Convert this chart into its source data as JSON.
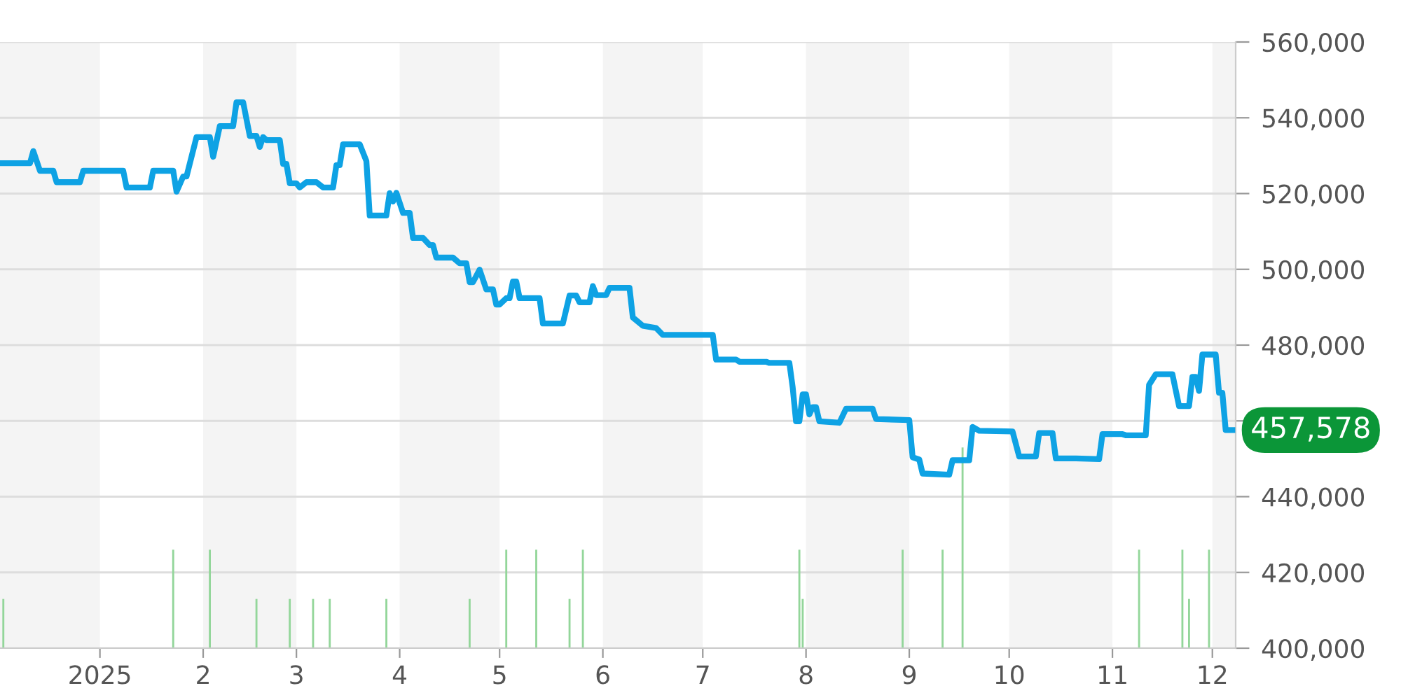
{
  "chart_data": {
    "type": "line",
    "series": [
      {
        "color": "#0ea2e4",
        "x": [
          "2024-12-02",
          "2024-12-11",
          "2024-12-12",
          "2024-12-14",
          "2024-12-18",
          "2024-12-19",
          "2024-12-26",
          "2024-12-27",
          "2025-01-08",
          "2025-01-09",
          "2025-01-16",
          "2025-01-17",
          "2025-01-23",
          "2025-01-24",
          "2025-01-26",
          "2025-01-27",
          "2025-01-30",
          "2025-02-03",
          "2025-02-04",
          "2025-02-06",
          "2025-02-10",
          "2025-02-11",
          "2025-02-13",
          "2025-02-15",
          "2025-02-17",
          "2025-02-18",
          "2025-02-19",
          "2025-02-20",
          "2025-02-24",
          "2025-02-25",
          "2025-02-26",
          "2025-02-27",
          "2025-03-01",
          "2025-03-02",
          "2025-03-04",
          "2025-03-07",
          "2025-03-09",
          "2025-03-12",
          "2025-03-13",
          "2025-03-14",
          "2025-03-15",
          "2025-03-20",
          "2025-03-22",
          "2025-03-23",
          "2025-03-28",
          "2025-03-29",
          "2025-03-30",
          "2025-03-31",
          "2025-04-02",
          "2025-04-04",
          "2025-04-05",
          "2025-04-08",
          "2025-04-10",
          "2025-04-11",
          "2025-04-12",
          "2025-04-17",
          "2025-04-19",
          "2025-04-21",
          "2025-04-22",
          "2025-04-23",
          "2025-04-25",
          "2025-04-27",
          "2025-04-29",
          "2025-04-30",
          "2025-05-01",
          "2025-05-03",
          "2025-05-04",
          "2025-05-05",
          "2025-05-06",
          "2025-05-07",
          "2025-05-13",
          "2025-05-14",
          "2025-05-20",
          "2025-05-22",
          "2025-05-24",
          "2025-05-25",
          "2025-05-28",
          "2025-05-29",
          "2025-05-30",
          "2025-06-02",
          "2025-06-03",
          "2025-06-09",
          "2025-06-10",
          "2025-06-13",
          "2025-06-17",
          "2025-06-19",
          "2025-07-04",
          "2025-07-05",
          "2025-07-11",
          "2025-07-12",
          "2025-07-20",
          "2025-07-21",
          "2025-07-27",
          "2025-07-28",
          "2025-07-29",
          "2025-07-30",
          "2025-07-31",
          "2025-08-01",
          "2025-08-02",
          "2025-08-03",
          "2025-08-04",
          "2025-08-05",
          "2025-08-11",
          "2025-08-13",
          "2025-08-21",
          "2025-08-22",
          "2025-09-01",
          "2025-09-02",
          "2025-09-04",
          "2025-09-05",
          "2025-09-13",
          "2025-09-14",
          "2025-09-19",
          "2025-09-20",
          "2025-09-22",
          "2025-10-02",
          "2025-10-04",
          "2025-10-09",
          "2025-10-10",
          "2025-10-14",
          "2025-10-15",
          "2025-10-21",
          "2025-10-28",
          "2025-10-29",
          "2025-11-04",
          "2025-11-05",
          "2025-11-11",
          "2025-11-12",
          "2025-11-14",
          "2025-11-19",
          "2025-11-21",
          "2025-11-24",
          "2025-11-25",
          "2025-11-26",
          "2025-11-27",
          "2025-11-28",
          "2025-12-02",
          "2025-12-03",
          "2025-12-04",
          "2025-12-05",
          "2025-12-07"
        ],
        "values": [
          528000,
          528000,
          531200,
          526000,
          526000,
          523000,
          523000,
          526000,
          526000,
          521600,
          521600,
          526000,
          526000,
          520500,
          524500,
          524500,
          534900,
          534900,
          529700,
          537800,
          537800,
          544100,
          544100,
          535200,
          535200,
          532300,
          534900,
          534100,
          534100,
          527800,
          527800,
          522700,
          522700,
          521600,
          523000,
          523000,
          521600,
          521600,
          527500,
          527500,
          533000,
          533000,
          528600,
          514200,
          514200,
          520100,
          517900,
          520200,
          514900,
          514900,
          508300,
          508300,
          506400,
          506400,
          503100,
          503100,
          501600,
          501600,
          496600,
          496600,
          499900,
          494700,
          494700,
          490700,
          490700,
          492400,
          492400,
          496800,
          496800,
          492400,
          492400,
          485700,
          485700,
          493100,
          493100,
          491300,
          491300,
          495600,
          493200,
          493200,
          495100,
          495100,
          487300,
          485100,
          484500,
          482700,
          482700,
          476200,
          476200,
          475600,
          475600,
          475300,
          475300,
          468800,
          459900,
          459900,
          467000,
          467000,
          461700,
          463600,
          463600,
          459900,
          459500,
          463200,
          463200,
          460500,
          460200,
          450400,
          449800,
          446100,
          445800,
          449600,
          449600,
          458400,
          457400,
          457200,
          450600,
          450600,
          456800,
          456800,
          450100,
          450100,
          449900,
          456500,
          456500,
          456200,
          456200,
          469500,
          472300,
          472300,
          463900,
          463900,
          471600,
          471600,
          467900,
          477500,
          477500,
          467400,
          467400,
          457578,
          457578
        ]
      },
      {
        "type": "bar",
        "color": "#93d69a",
        "x": [
          "2024-12-03",
          "2025-01-23",
          "2025-02-03",
          "2025-02-17",
          "2025-02-27",
          "2025-03-06",
          "2025-03-11",
          "2025-03-28",
          "2025-04-22",
          "2025-05-03",
          "2025-05-12",
          "2025-05-22",
          "2025-05-26",
          "2025-07-30",
          "2025-07-31",
          "2025-08-30",
          "2025-09-11",
          "2025-09-17",
          "2025-11-09",
          "2025-11-22",
          "2025-11-24",
          "2025-11-30"
        ],
        "values": [
          413000,
          426000,
          426000,
          413000,
          413000,
          413000,
          413000,
          413000,
          413000,
          426000,
          426000,
          413000,
          426000,
          426000,
          413000,
          426000,
          426000,
          453000,
          426000,
          426000,
          413000,
          426000
        ]
      }
    ],
    "xlim": [
      "2024-12-02",
      "2025-12-08"
    ],
    "xticks": [
      {
        "value": "2025-01-01",
        "label": "2025"
      },
      {
        "value": "2025-02-01",
        "label": "2"
      },
      {
        "value": "2025-03-01",
        "label": "3"
      },
      {
        "value": "2025-04-01",
        "label": "4"
      },
      {
        "value": "2025-05-01",
        "label": "5"
      },
      {
        "value": "2025-06-01",
        "label": "6"
      },
      {
        "value": "2025-07-01",
        "label": "7"
      },
      {
        "value": "2025-08-01",
        "label": "8"
      },
      {
        "value": "2025-09-01",
        "label": "9"
      },
      {
        "value": "2025-10-01",
        "label": "10"
      },
      {
        "value": "2025-11-01",
        "label": "11"
      },
      {
        "value": "2025-12-01",
        "label": "12"
      }
    ],
    "ylim": [
      400000,
      560000
    ],
    "yticks": [
      {
        "value": 400000,
        "label": "400,000"
      },
      {
        "value": 420000,
        "label": "420,000"
      },
      {
        "value": 440000,
        "label": "440,000"
      },
      {
        "value": 460000,
        "label": null
      },
      {
        "value": 480000,
        "label": "480,000"
      },
      {
        "value": 500000,
        "label": "500,000"
      },
      {
        "value": 520000,
        "label": "520,000"
      },
      {
        "value": 540000,
        "label": "540,000"
      },
      {
        "value": 560000,
        "label": "560,000"
      }
    ],
    "bands": [
      {
        "axis": "x",
        "from": "2024-12-02",
        "to": "2025-01-01",
        "color": "#f4f4f4"
      },
      {
        "axis": "x",
        "from": "2025-02-01",
        "to": "2025-03-01",
        "color": "#f4f4f4"
      },
      {
        "axis": "x",
        "from": "2025-04-01",
        "to": "2025-05-01",
        "color": "#f4f4f4"
      },
      {
        "axis": "x",
        "from": "2025-06-01",
        "to": "2025-07-01",
        "color": "#f4f4f4"
      },
      {
        "axis": "x",
        "from": "2025-08-01",
        "to": "2025-09-01",
        "color": "#f4f4f4"
      },
      {
        "axis": "x",
        "from": "2025-10-01",
        "to": "2025-11-01",
        "color": "#f4f4f4"
      },
      {
        "axis": "x",
        "from": "2025-12-01",
        "to": "2025-12-08",
        "color": "#f4f4f4"
      }
    ],
    "annotations": [
      {
        "text": "457,578",
        "x": "2025-12-07",
        "y": 457578
      }
    ],
    "grid": "y",
    "legend": false,
    "marker": "none",
    "line_style": "solid"
  }
}
